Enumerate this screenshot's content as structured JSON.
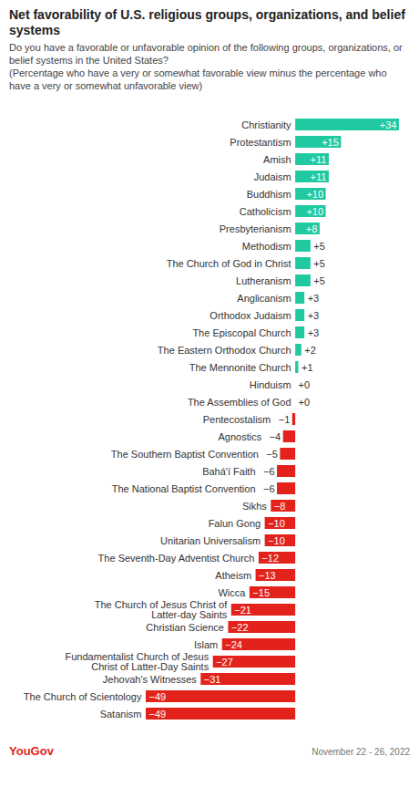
{
  "chart_data": {
    "type": "bar",
    "title": "Net favorability of U.S. religious groups, organizations, and belief systems",
    "subtitle": "Do you have a favorable or unfavorable opinion of the following groups, organizations, or belief systems in the United States?\n(Percentage who have a very or somewhat favorable view minus the percentage who have a very or somewhat unfavorable view)",
    "source": "YouGov",
    "caption": "November 22 - 26, 2022",
    "orientation": "horizontal",
    "data_labels": true,
    "tick_labels": "y",
    "categories": [
      "Christianity",
      "Protestantism",
      "Amish",
      "Judaism",
      "Buddhism",
      "Catholicism",
      "Presbyterianism",
      "Methodism",
      "The Church of God in Christ",
      "Lutheranism",
      "Anglicanism",
      "Orthodox Judaism",
      "The Episcopal Church",
      "The Eastern Orthodox Church",
      "The Mennonite Church",
      "Hinduism",
      "The Assemblies of God",
      "Pentecostalism",
      "Agnostics",
      "The Southern Baptist Convention",
      "Bahá'í Faith",
      "The National Baptist Convention",
      "Sikhs",
      "Falun Gong",
      "Unitarian Universalism",
      "The Seventh-Day Adventist Church",
      "Atheism",
      "Wicca",
      "The Church of Jesus Christ of Latter-day Saints",
      "Christian Science",
      "Islam",
      "Fundamentalist Church of Jesus Christ of Latter-Day Saints",
      "Jehovah's Witnesses",
      "The Church of Scientology",
      "Satanism"
    ],
    "values": [
      34,
      15,
      11,
      11,
      10,
      10,
      8,
      5,
      5,
      5,
      3,
      3,
      3,
      2,
      1,
      0,
      0,
      -1,
      -4,
      -5,
      -6,
      -6,
      -8,
      -10,
      -10,
      -12,
      -13,
      -15,
      -21,
      -22,
      -24,
      -27,
      -31,
      -49,
      -49
    ],
    "value_labels": [
      "+34",
      "+15",
      "+11",
      "+11",
      "+10",
      "+10",
      "+8",
      "+5",
      "+5",
      "+5",
      "+3",
      "+3",
      "+3",
      "+2",
      "+1",
      "+0",
      "+0",
      "−1",
      "−4",
      "−5",
      "−6",
      "−6",
      "−8",
      "−10",
      "−10",
      "−12",
      "−13",
      "−15",
      "−21",
      "−22",
      "−24",
      "−27",
      "−31",
      "−49",
      "−49"
    ],
    "colors": [
      "#21c9a1",
      "#21c9a1",
      "#21c9a1",
      "#21c9a1",
      "#21c9a1",
      "#21c9a1",
      "#21c9a1",
      "#21c9a1",
      "#21c9a1",
      "#21c9a1",
      "#21c9a1",
      "#21c9a1",
      "#21c9a1",
      "#21c9a1",
      "#21c9a1",
      "#21c9a1",
      "#21c9a1",
      "#e3231b",
      "#e3231b",
      "#e3231b",
      "#e3231b",
      "#e3231b",
      "#e3231b",
      "#e3231b",
      "#e3231b",
      "#e3231b",
      "#e3231b",
      "#e3231b",
      "#e3231b",
      "#e3231b",
      "#e3231b",
      "#e3231b",
      "#e3231b",
      "#e3231b",
      "#e3231b"
    ],
    "xlim": [
      -49,
      34
    ]
  }
}
